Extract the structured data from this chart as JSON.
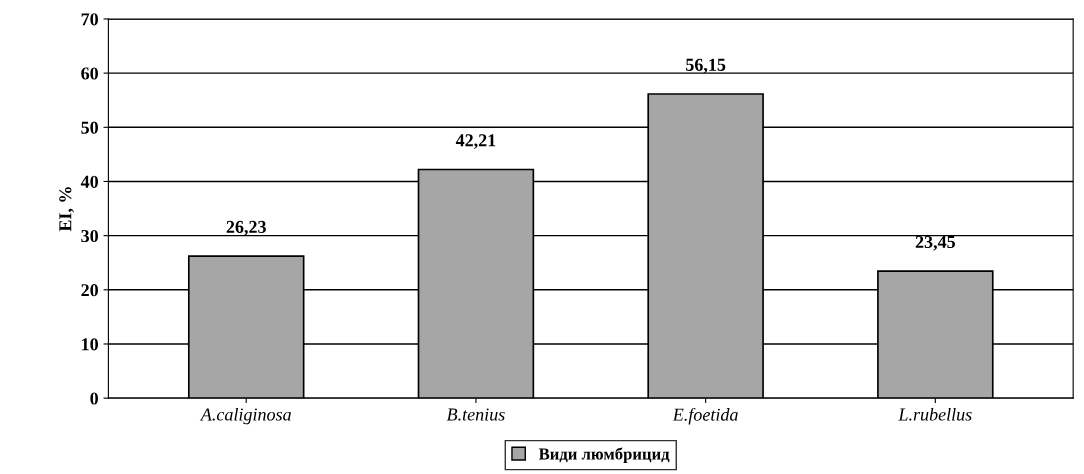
{
  "chart_data": {
    "type": "bar",
    "ylabel": "EI, %",
    "categories": [
      "A.caliginosa",
      "B.tenius",
      "E.foetida",
      "L.rubellus"
    ],
    "series": [
      {
        "name": "Види люмбрицид",
        "color": "#a6a6a6",
        "values": [
          26.23,
          42.21,
          56.15,
          23.45
        ]
      }
    ],
    "value_labels": [
      "26,23",
      "42,21",
      "56,15",
      "23,45"
    ],
    "ylim": [
      0,
      70
    ],
    "yticks": [
      0,
      10,
      20,
      30,
      40,
      50,
      60,
      70
    ],
    "grid": "y",
    "legend": "bottom"
  }
}
